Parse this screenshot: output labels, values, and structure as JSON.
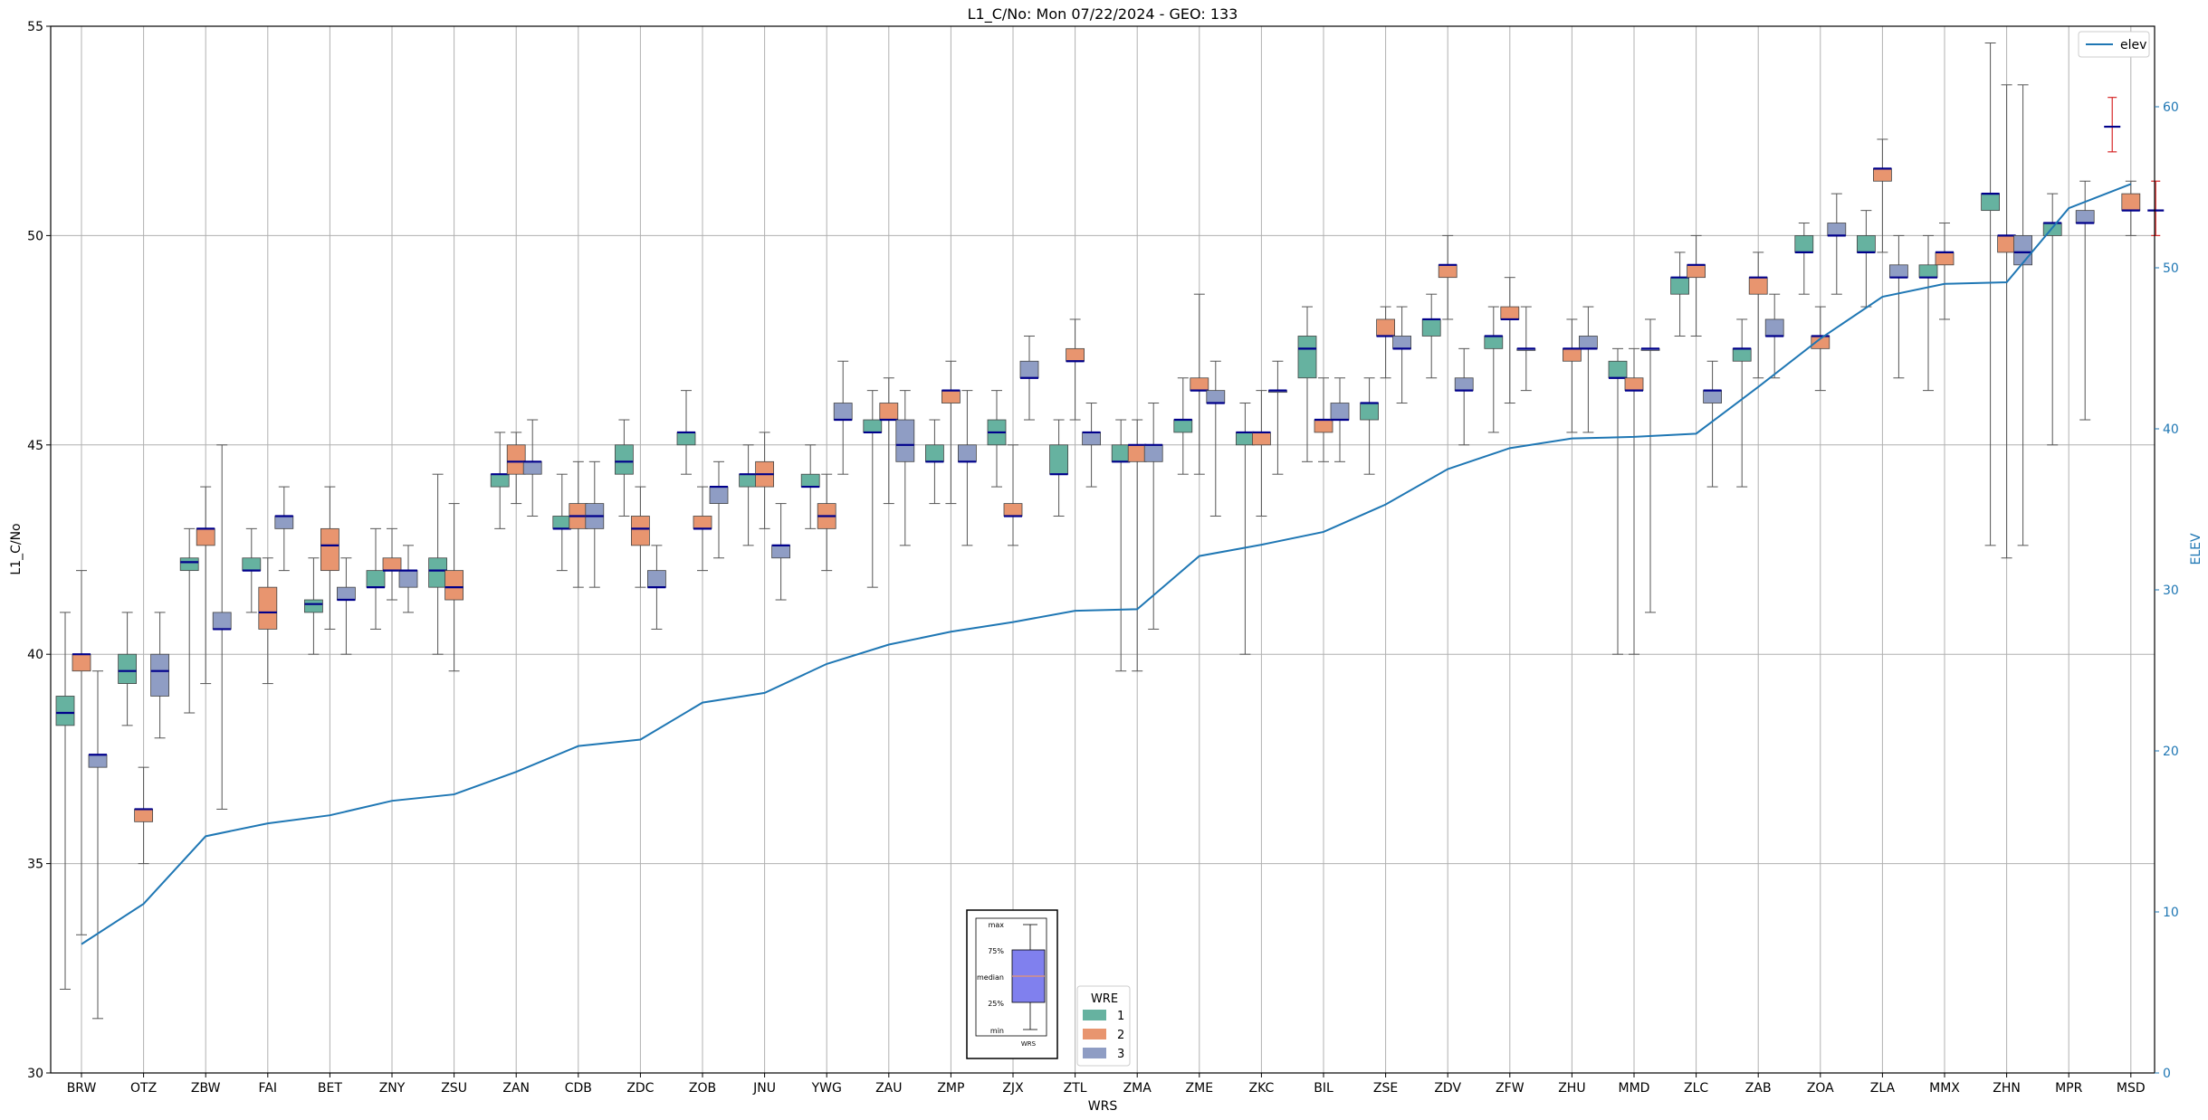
{
  "chart_data": {
    "type": "boxplot",
    "title": "L1_C/No: Mon 07/22/2024 - GEO: 133",
    "xlabel": "WRS",
    "ylabel": "L1_C/No",
    "y2label": "ELEV",
    "ylim": [
      30,
      55
    ],
    "y2lim": [
      0,
      65
    ],
    "yticks": [
      30,
      35,
      40,
      45,
      50,
      55
    ],
    "y2ticks": [
      0,
      10,
      20,
      30,
      40,
      50,
      60
    ],
    "grid": true,
    "categories": [
      "BRW",
      "OTZ",
      "ZBW",
      "FAI",
      "BET",
      "ZNY",
      "ZSU",
      "ZAN",
      "CDB",
      "ZDC",
      "ZOB",
      "JNU",
      "YWG",
      "ZAU",
      "ZMP",
      "ZJX",
      "ZTL",
      "ZMA",
      "ZME",
      "ZKC",
      "BIL",
      "ZSE",
      "ZDV",
      "ZFW",
      "ZHU",
      "MMD",
      "ZLC",
      "ZAB",
      "ZOA",
      "ZLA",
      "MMX",
      "ZHN",
      "MPR",
      "MSD"
    ],
    "colors": {
      "1": "#66b2a0",
      "2": "#e8956f",
      "3": "#8f9dc4",
      "median": "#00008b",
      "whisker": "#555555",
      "elev": "#1f77b4",
      "outlier_whisker": "#d62728"
    },
    "wre_legend": {
      "title": "WRE",
      "items": [
        {
          "label": "1",
          "key": "1"
        },
        {
          "label": "2",
          "key": "2"
        },
        {
          "label": "3",
          "key": "3"
        }
      ]
    },
    "elev_legend": {
      "label": "elev"
    },
    "key_box": {
      "labels": [
        "max",
        "75%",
        "median",
        "25%",
        "min"
      ],
      "xlabel": "WRS"
    },
    "elev": [
      8,
      10.5,
      14.7,
      15.5,
      16,
      16.9,
      17.3,
      18.7,
      20.3,
      20.7,
      23,
      23.6,
      25.4,
      26.6,
      27.4,
      28,
      28.7,
      28.8,
      32.1,
      32.8,
      33.6,
      35.3,
      37.5,
      38.8,
      39.4,
      39.5,
      39.7,
      42.6,
      45.6,
      48.2,
      49,
      49.1,
      53.7,
      55.2
    ],
    "series": [
      {
        "name": "1",
        "boxes": [
          {
            "c": 0,
            "min": 32,
            "q1": 38.3,
            "med": 38.6,
            "q3": 39,
            "max": 41
          },
          {
            "c": 1,
            "min": 38.3,
            "q1": 39.3,
            "med": 39.6,
            "q3": 40,
            "max": 41
          },
          {
            "c": 2,
            "min": 38.6,
            "q1": 42,
            "med": 42.2,
            "q3": 42.3,
            "max": 43
          },
          {
            "c": 3,
            "min": 41,
            "q1": 42,
            "med": 42,
            "q3": 42.3,
            "max": 43
          },
          {
            "c": 4,
            "min": 40,
            "q1": 41,
            "med": 41.2,
            "q3": 41.3,
            "max": 42.3
          },
          {
            "c": 5,
            "min": 40.6,
            "q1": 41.6,
            "med": 41.6,
            "q3": 42,
            "max": 43
          },
          {
            "c": 6,
            "min": 40,
            "q1": 41.6,
            "med": 42,
            "q3": 42.3,
            "max": 44.3
          },
          {
            "c": 7,
            "min": 43,
            "q1": 44,
            "med": 44.3,
            "q3": 44.3,
            "max": 45.3
          },
          {
            "c": 8,
            "min": 42,
            "q1": 43,
            "med": 43,
            "q3": 43.3,
            "max": 44.3
          },
          {
            "c": 9,
            "min": 43.3,
            "q1": 44.3,
            "med": 44.6,
            "q3": 45,
            "max": 45.6
          },
          {
            "c": 10,
            "min": 44.3,
            "q1": 45,
            "med": 45.3,
            "q3": 45.3,
            "max": 46.3
          },
          {
            "c": 11,
            "min": 42.6,
            "q1": 44,
            "med": 44.3,
            "q3": 44.3,
            "max": 45
          },
          {
            "c": 12,
            "min": 43,
            "q1": 44,
            "med": 44,
            "q3": 44.3,
            "max": 45
          },
          {
            "c": 13,
            "min": 41.6,
            "q1": 45.3,
            "med": 45.3,
            "q3": 45.6,
            "max": 46.3
          },
          {
            "c": 14,
            "min": 43.6,
            "q1": 44.6,
            "med": 44.6,
            "q3": 45,
            "max": 45.6
          },
          {
            "c": 15,
            "min": 44,
            "q1": 45,
            "med": 45.3,
            "q3": 45.6,
            "max": 46.3
          },
          {
            "c": 16,
            "min": 43.3,
            "q1": 44.3,
            "med": 44.3,
            "q3": 45,
            "max": 45.6
          },
          {
            "c": 17,
            "min": 39.6,
            "q1": 44.6,
            "med": 44.6,
            "q3": 45,
            "max": 45.6
          },
          {
            "c": 18,
            "min": 44.3,
            "q1": 45.3,
            "med": 45.6,
            "q3": 45.6,
            "max": 46.6
          },
          {
            "c": 19,
            "min": 40,
            "q1": 45,
            "med": 45.3,
            "q3": 45.3,
            "max": 46
          },
          {
            "c": 20,
            "min": 44.6,
            "q1": 46.6,
            "med": 47.3,
            "q3": 47.6,
            "max": 48.3
          },
          {
            "c": 21,
            "min": 44.3,
            "q1": 45.6,
            "med": 46,
            "q3": 46,
            "max": 46.6
          },
          {
            "c": 22,
            "min": 46.6,
            "q1": 47.6,
            "med": 48,
            "q3": 48,
            "max": 48.6
          },
          {
            "c": 23,
            "min": 45.3,
            "q1": 47.3,
            "med": 47.6,
            "q3": 47.6,
            "max": 48.3
          },
          {
            "c": 25,
            "min": 40,
            "q1": 46.6,
            "med": 46.6,
            "q3": 47,
            "max": 47.3
          },
          {
            "c": 26,
            "min": 47.6,
            "q1": 48.6,
            "med": 49,
            "q3": 49,
            "max": 49.6
          },
          {
            "c": 27,
            "min": 44,
            "q1": 47,
            "med": 47.3,
            "q3": 47.3,
            "max": 48
          },
          {
            "c": 28,
            "min": 48.6,
            "q1": 49.6,
            "med": 49.6,
            "q3": 50,
            "max": 50.3
          },
          {
            "c": 29,
            "min": 48.3,
            "q1": 49.6,
            "med": 49.6,
            "q3": 50,
            "max": 50.6
          },
          {
            "c": 30,
            "min": 46.3,
            "q1": 49,
            "med": 49,
            "q3": 49.3,
            "max": 50
          },
          {
            "c": 31,
            "min": 42.6,
            "q1": 50.6,
            "med": 51,
            "q3": 51,
            "max": 54.6
          },
          {
            "c": 32,
            "min": 45,
            "q1": 50,
            "med": 50.3,
            "q3": 50.3,
            "max": 51
          }
        ]
      },
      {
        "name": "2",
        "boxes": [
          {
            "c": 0,
            "min": 33.3,
            "q1": 39.6,
            "med": 40,
            "q3": 40,
            "max": 42
          },
          {
            "c": 1,
            "min": 35,
            "q1": 36,
            "med": 36.3,
            "q3": 36.3,
            "max": 37.3
          },
          {
            "c": 2,
            "min": 39.3,
            "q1": 42.6,
            "med": 43,
            "q3": 43,
            "max": 44
          },
          {
            "c": 3,
            "min": 39.3,
            "q1": 40.6,
            "med": 41,
            "q3": 41.6,
            "max": 42.3
          },
          {
            "c": 4,
            "min": 40.6,
            "q1": 42,
            "med": 42.6,
            "q3": 43,
            "max": 44
          },
          {
            "c": 5,
            "min": 41.3,
            "q1": 42,
            "med": 42,
            "q3": 42.3,
            "max": 43
          },
          {
            "c": 6,
            "min": 39.6,
            "q1": 41.3,
            "med": 41.6,
            "q3": 42,
            "max": 43.6
          },
          {
            "c": 7,
            "min": 43.6,
            "q1": 44.3,
            "med": 44.6,
            "q3": 45,
            "max": 45.3
          },
          {
            "c": 8,
            "min": 41.6,
            "q1": 43,
            "med": 43.3,
            "q3": 43.6,
            "max": 44.6
          },
          {
            "c": 9,
            "min": 41.6,
            "q1": 42.6,
            "med": 43,
            "q3": 43.3,
            "max": 44
          },
          {
            "c": 10,
            "min": 42,
            "q1": 43,
            "med": 43,
            "q3": 43.3,
            "max": 44
          },
          {
            "c": 11,
            "min": 43,
            "q1": 44,
            "med": 44.3,
            "q3": 44.6,
            "max": 45.3
          },
          {
            "c": 12,
            "min": 42,
            "q1": 43,
            "med": 43.3,
            "q3": 43.6,
            "max": 44.3
          },
          {
            "c": 13,
            "min": 43.6,
            "q1": 45.6,
            "med": 45.6,
            "q3": 46,
            "max": 46.6
          },
          {
            "c": 14,
            "min": 43.6,
            "q1": 46,
            "med": 46.3,
            "q3": 46.3,
            "max": 47
          },
          {
            "c": 15,
            "min": 42.6,
            "q1": 43.3,
            "med": 43.3,
            "q3": 43.6,
            "max": 45
          },
          {
            "c": 16,
            "min": 45.6,
            "q1": 47,
            "med": 47,
            "q3": 47.3,
            "max": 48
          },
          {
            "c": 17,
            "min": 39.6,
            "q1": 44.6,
            "med": 45,
            "q3": 45,
            "max": 45.6
          },
          {
            "c": 18,
            "min": 44.3,
            "q1": 46.3,
            "med": 46.3,
            "q3": 46.6,
            "max": 48.6
          },
          {
            "c": 19,
            "min": 43.3,
            "q1": 45,
            "med": 45.3,
            "q3": 45.3,
            "max": 46.3
          },
          {
            "c": 20,
            "min": 44.6,
            "q1": 45.3,
            "med": 45.6,
            "q3": 45.6,
            "max": 46.6
          },
          {
            "c": 21,
            "min": 46.6,
            "q1": 47.6,
            "med": 47.6,
            "q3": 48,
            "max": 48.3
          },
          {
            "c": 22,
            "min": 48,
            "q1": 49,
            "med": 49.3,
            "q3": 49.3,
            "max": 50
          },
          {
            "c": 23,
            "min": 46,
            "q1": 48,
            "med": 48,
            "q3": 48.3,
            "max": 49
          },
          {
            "c": 24,
            "min": 45.3,
            "q1": 47,
            "med": 47.3,
            "q3": 47.3,
            "max": 48
          },
          {
            "c": 25,
            "min": 40,
            "q1": 46.3,
            "med": 46.3,
            "q3": 46.6,
            "max": 47.3
          },
          {
            "c": 26,
            "min": 47.6,
            "q1": 49,
            "med": 49.3,
            "q3": 49.3,
            "max": 50
          },
          {
            "c": 27,
            "min": 46.6,
            "q1": 48.6,
            "med": 49,
            "q3": 49,
            "max": 49.6
          },
          {
            "c": 28,
            "min": 46.3,
            "q1": 47.3,
            "med": 47.6,
            "q3": 47.6,
            "max": 48.3
          },
          {
            "c": 29,
            "min": 49.6,
            "q1": 51.3,
            "med": 51.6,
            "q3": 51.6,
            "max": 52.3
          },
          {
            "c": 30,
            "min": 48,
            "q1": 49.3,
            "med": 49.6,
            "q3": 49.6,
            "max": 50.3
          },
          {
            "c": 31,
            "min": 42.3,
            "q1": 49.6,
            "med": 50,
            "q3": 50,
            "max": 53.6
          },
          {
            "c": 33,
            "min": 50,
            "q1": 50.6,
            "med": 50.6,
            "q3": 51,
            "max": 51.3
          }
        ]
      },
      {
        "name": "3",
        "boxes": [
          {
            "c": 0,
            "min": 31.3,
            "q1": 37.3,
            "med": 37.6,
            "q3": 37.6,
            "max": 39.6
          },
          {
            "c": 1,
            "min": 38,
            "q1": 39,
            "med": 39.6,
            "q3": 40,
            "max": 41
          },
          {
            "c": 2,
            "min": 36.3,
            "q1": 40.6,
            "med": 40.6,
            "q3": 41,
            "max": 45
          },
          {
            "c": 3,
            "min": 42,
            "q1": 43,
            "med": 43.3,
            "q3": 43.3,
            "max": 44
          },
          {
            "c": 4,
            "min": 40,
            "q1": 41.3,
            "med": 41.3,
            "q3": 41.6,
            "max": 42.3
          },
          {
            "c": 5,
            "min": 41,
            "q1": 41.6,
            "med": 42,
            "q3": 42,
            "max": 42.6
          },
          {
            "c": 7,
            "min": 43.3,
            "q1": 44.3,
            "med": 44.6,
            "q3": 44.6,
            "max": 45.6
          },
          {
            "c": 8,
            "min": 41.6,
            "q1": 43,
            "med": 43.3,
            "q3": 43.6,
            "max": 44.6
          },
          {
            "c": 9,
            "min": 40.6,
            "q1": 41.6,
            "med": 41.6,
            "q3": 42,
            "max": 42.6
          },
          {
            "c": 10,
            "min": 42.3,
            "q1": 43.6,
            "med": 44,
            "q3": 44,
            "max": 44.6
          },
          {
            "c": 11,
            "min": 41.3,
            "q1": 42.3,
            "med": 42.6,
            "q3": 42.6,
            "max": 43.6
          },
          {
            "c": 12,
            "min": 44.3,
            "q1": 45.6,
            "med": 45.6,
            "q3": 46,
            "max": 47
          },
          {
            "c": 13,
            "min": 42.6,
            "q1": 44.6,
            "med": 45,
            "q3": 45.6,
            "max": 46.3
          },
          {
            "c": 14,
            "min": 42.6,
            "q1": 44.6,
            "med": 44.6,
            "q3": 45,
            "max": 46.3
          },
          {
            "c": 15,
            "min": 45.6,
            "q1": 46.6,
            "med": 46.6,
            "q3": 47,
            "max": 47.6
          },
          {
            "c": 16,
            "min": 44,
            "q1": 45,
            "med": 45.3,
            "q3": 45.3,
            "max": 46
          },
          {
            "c": 17,
            "min": 40.6,
            "q1": 44.6,
            "med": 45,
            "q3": 45,
            "max": 46
          },
          {
            "c": 18,
            "min": 43.3,
            "q1": 46,
            "med": 46,
            "q3": 46.3,
            "max": 47
          },
          {
            "c": 19,
            "min": 44.3,
            "q1": 46.3,
            "med": 46.3,
            "q3": 46.3,
            "max": 47
          },
          {
            "c": 20,
            "min": 44.6,
            "q1": 45.6,
            "med": 45.6,
            "q3": 46,
            "max": 46.6
          },
          {
            "c": 21,
            "min": 46,
            "q1": 47.3,
            "med": 47.3,
            "q3": 47.6,
            "max": 48.3
          },
          {
            "c": 22,
            "min": 45,
            "q1": 46.3,
            "med": 46.3,
            "q3": 46.6,
            "max": 47.3
          },
          {
            "c": 23,
            "min": 46.3,
            "q1": 47.3,
            "med": 47.3,
            "q3": 47.3,
            "max": 48.3
          },
          {
            "c": 24,
            "min": 45.3,
            "q1": 47.3,
            "med": 47.3,
            "q3": 47.6,
            "max": 48.3
          },
          {
            "c": 25,
            "min": 41,
            "q1": 47.3,
            "med": 47.3,
            "q3": 47.3,
            "max": 48
          },
          {
            "c": 26,
            "min": 44,
            "q1": 46,
            "med": 46.3,
            "q3": 46.3,
            "max": 47
          },
          {
            "c": 27,
            "min": 46.6,
            "q1": 47.6,
            "med": 47.6,
            "q3": 48,
            "max": 48.6
          },
          {
            "c": 28,
            "min": 48.6,
            "q1": 50,
            "med": 50,
            "q3": 50.3,
            "max": 51
          },
          {
            "c": 29,
            "min": 46.6,
            "q1": 49,
            "med": 49,
            "q3": 49.3,
            "max": 50
          },
          {
            "c": 31,
            "min": 42.6,
            "q1": 49.3,
            "med": 49.6,
            "q3": 50,
            "max": 53.6
          },
          {
            "c": 32,
            "min": 45.6,
            "q1": 50.3,
            "med": 50.3,
            "q3": 50.6,
            "max": 51.3
          }
        ]
      }
    ],
    "extra_whiskers": [
      {
        "c": 32,
        "offset": 0.7,
        "min": 52,
        "med": 52.6,
        "max": 53.3
      },
      {
        "c": 33,
        "offset": 0.4,
        "min": 50,
        "med": 50.6,
        "max": 51.3
      }
    ]
  }
}
